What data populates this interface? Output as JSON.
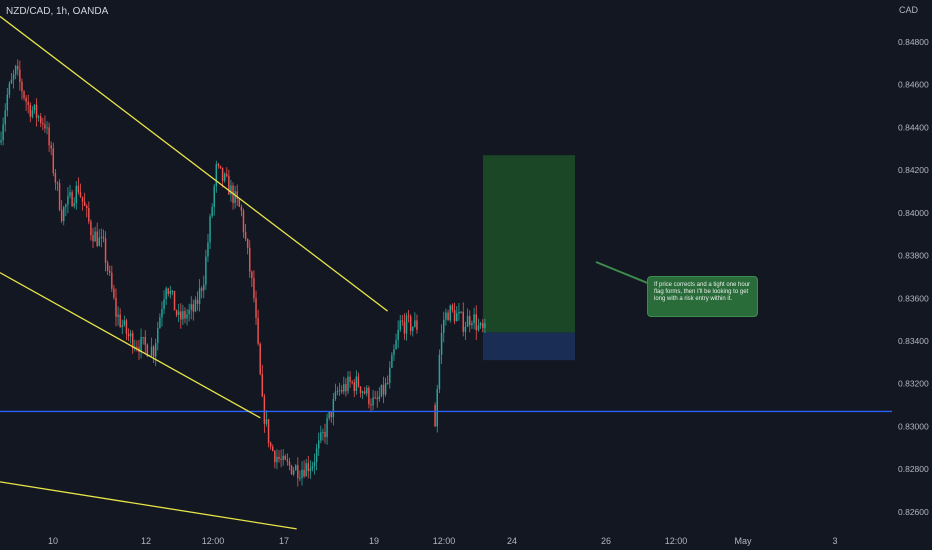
{
  "header": {
    "symbol": "NZD/CAD, 1h, OANDA",
    "currency": "CAD"
  },
  "annotation": {
    "text": "If price corrects and a tight one hour flag forms, then I'll be looking to get long with a risk entry within it."
  },
  "colors": {
    "background": "#131722",
    "up": "#26a69a",
    "down": "#ef5350",
    "trendline": "#e8e548",
    "support": "#2962ff",
    "target_zone": "#1b4726",
    "stop_zone": "#1a2e55",
    "note": "#2a6b3a"
  },
  "chart_data": {
    "type": "candlestick",
    "title": "NZD/CAD, 1h, OANDA",
    "ylabel": "CAD",
    "ylim": [
      0.8251,
      0.8495
    ],
    "y_ticks": [
      "0.84800",
      "0.84600",
      "0.84400",
      "0.84200",
      "0.84000",
      "0.83800",
      "0.83600",
      "0.83400",
      "0.83200",
      "0.83000",
      "0.82800",
      "0.82600"
    ],
    "x_ticks": [
      "10",
      "12",
      "12:00",
      "17",
      "19",
      "12:00",
      "24",
      "26",
      "12:00",
      "May",
      "3"
    ],
    "price_path_anchors": [
      [
        0.0,
        0.8433
      ],
      [
        0.02,
        0.8455
      ],
      [
        0.04,
        0.8466
      ],
      [
        0.07,
        0.845
      ],
      [
        0.11,
        0.8442
      ],
      [
        0.15,
        0.84
      ],
      [
        0.19,
        0.8412
      ],
      [
        0.22,
        0.8392
      ],
      [
        0.25,
        0.8384
      ],
      [
        0.28,
        0.8353
      ],
      [
        0.31,
        0.8342
      ],
      [
        0.34,
        0.8338
      ],
      [
        0.37,
        0.8336
      ],
      [
        0.4,
        0.8368
      ],
      [
        0.43,
        0.835
      ],
      [
        0.47,
        0.8355
      ],
      [
        0.49,
        0.837
      ],
      [
        0.52,
        0.842
      ],
      [
        0.55,
        0.8412
      ],
      [
        0.58,
        0.84
      ],
      [
        0.61,
        0.836
      ],
      [
        0.63,
        0.831
      ],
      [
        0.65,
        0.829
      ],
      [
        0.68,
        0.8282
      ],
      [
        0.72,
        0.828
      ],
      [
        0.75,
        0.8283
      ],
      [
        0.78,
        0.8298
      ],
      [
        0.81,
        0.8316
      ],
      [
        0.84,
        0.832
      ],
      [
        0.86,
        0.832
      ],
      [
        0.9,
        0.831
      ],
      [
        0.93,
        0.832
      ],
      [
        0.96,
        0.8348
      ],
      [
        1.0,
        0.8347
      ]
    ],
    "price_path_2_anchors": [
      [
        0.0,
        0.831
      ],
      [
        0.05,
        0.83
      ],
      [
        0.1,
        0.8328
      ],
      [
        0.2,
        0.835
      ],
      [
        0.3,
        0.8354
      ],
      [
        0.45,
        0.8352
      ],
      [
        0.6,
        0.8348
      ],
      [
        0.75,
        0.8352
      ],
      [
        0.9,
        0.8345
      ],
      [
        1.0,
        0.8344
      ]
    ],
    "support_level": 0.8307,
    "long_position": {
      "entry": 0.8344,
      "target": 0.8427,
      "stop": 0.8331
    },
    "trendlines": [
      {
        "name": "upper",
        "from": [
          0.0,
          0.8492
        ],
        "to": [
          0.4345,
          0.8354
        ]
      },
      {
        "name": "middle",
        "from": [
          0.0,
          0.8372
        ],
        "to": [
          0.2918,
          0.8304
        ]
      },
      {
        "name": "lower",
        "from": [
          0.0,
          0.8274
        ],
        "to": [
          0.3326,
          0.8252
        ]
      }
    ],
    "grid": false
  }
}
